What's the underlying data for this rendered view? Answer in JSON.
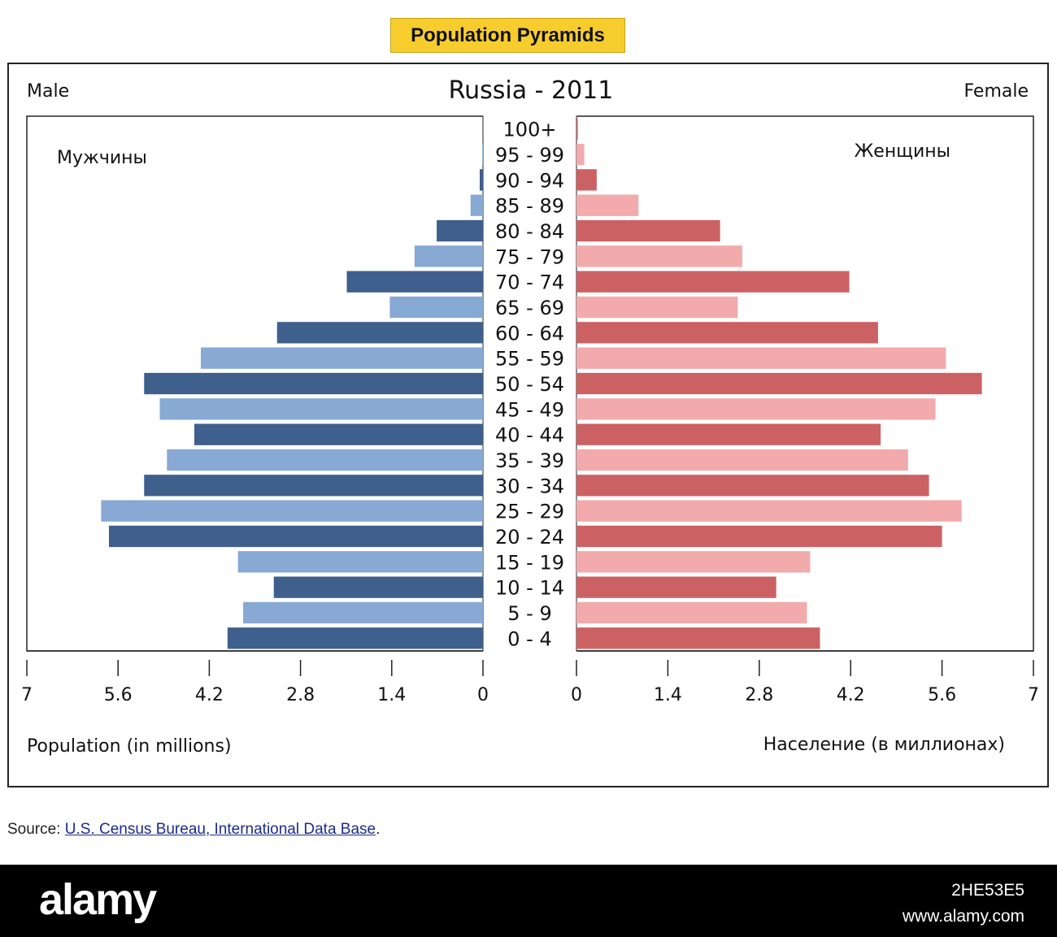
{
  "header": {
    "badge": "Population Pyramids"
  },
  "chart_data": {
    "type": "bar",
    "subtype": "population-pyramid",
    "title": "Russia - 2011",
    "left_label": "Male",
    "right_label": "Female",
    "left_label_ru": "Мужчины",
    "right_label_ru": "Женщины",
    "xlabel_left": "Population (in millions)",
    "xlabel_right": "Население (в миллионах)",
    "xlim": [
      0,
      7
    ],
    "ticks": [
      0,
      1.4,
      2.8,
      4.2,
      5.6,
      7
    ],
    "tick_labels": [
      "0",
      "1.4",
      "2.8",
      "4.2",
      "5.6",
      "7"
    ],
    "categories": [
      "100+",
      "95 - 99",
      "90 - 94",
      "85 - 89",
      "80 - 84",
      "75 - 79",
      "70 - 74",
      "65 - 69",
      "60 - 64",
      "55 - 59",
      "50 - 54",
      "45 - 49",
      "40 - 44",
      "35 - 39",
      "30 - 34",
      "25 - 29",
      "20 - 24",
      "15 - 19",
      "10 - 14",
      "5 - 9",
      "0 - 4"
    ],
    "series": [
      {
        "name": "Male",
        "values": [
          0.0,
          0.01,
          0.05,
          0.19,
          0.71,
          1.05,
          2.09,
          1.43,
          3.16,
          4.33,
          5.2,
          4.96,
          4.43,
          4.85,
          5.2,
          5.86,
          5.74,
          3.76,
          3.21,
          3.68,
          3.92
        ]
      },
      {
        "name": "Female",
        "values": [
          0.02,
          0.12,
          0.31,
          0.95,
          2.2,
          2.54,
          4.18,
          2.47,
          4.62,
          5.66,
          6.21,
          5.5,
          4.66,
          5.08,
          5.4,
          5.9,
          5.6,
          3.58,
          3.06,
          3.53,
          3.73
        ]
      }
    ],
    "colors": {
      "male_dark": "#3f5f8c",
      "male_light": "#87a9d3",
      "female_dark": "#cc6164",
      "female_light": "#f2aaac"
    },
    "grid": false,
    "legend": "none"
  },
  "source": {
    "prefix": "Source: ",
    "link": "U.S. Census Bureau, International Data Base",
    "suffix": "."
  },
  "footer": {
    "logo": "alamy",
    "code": "2HE53E5",
    "web": "www.alamy.com"
  }
}
